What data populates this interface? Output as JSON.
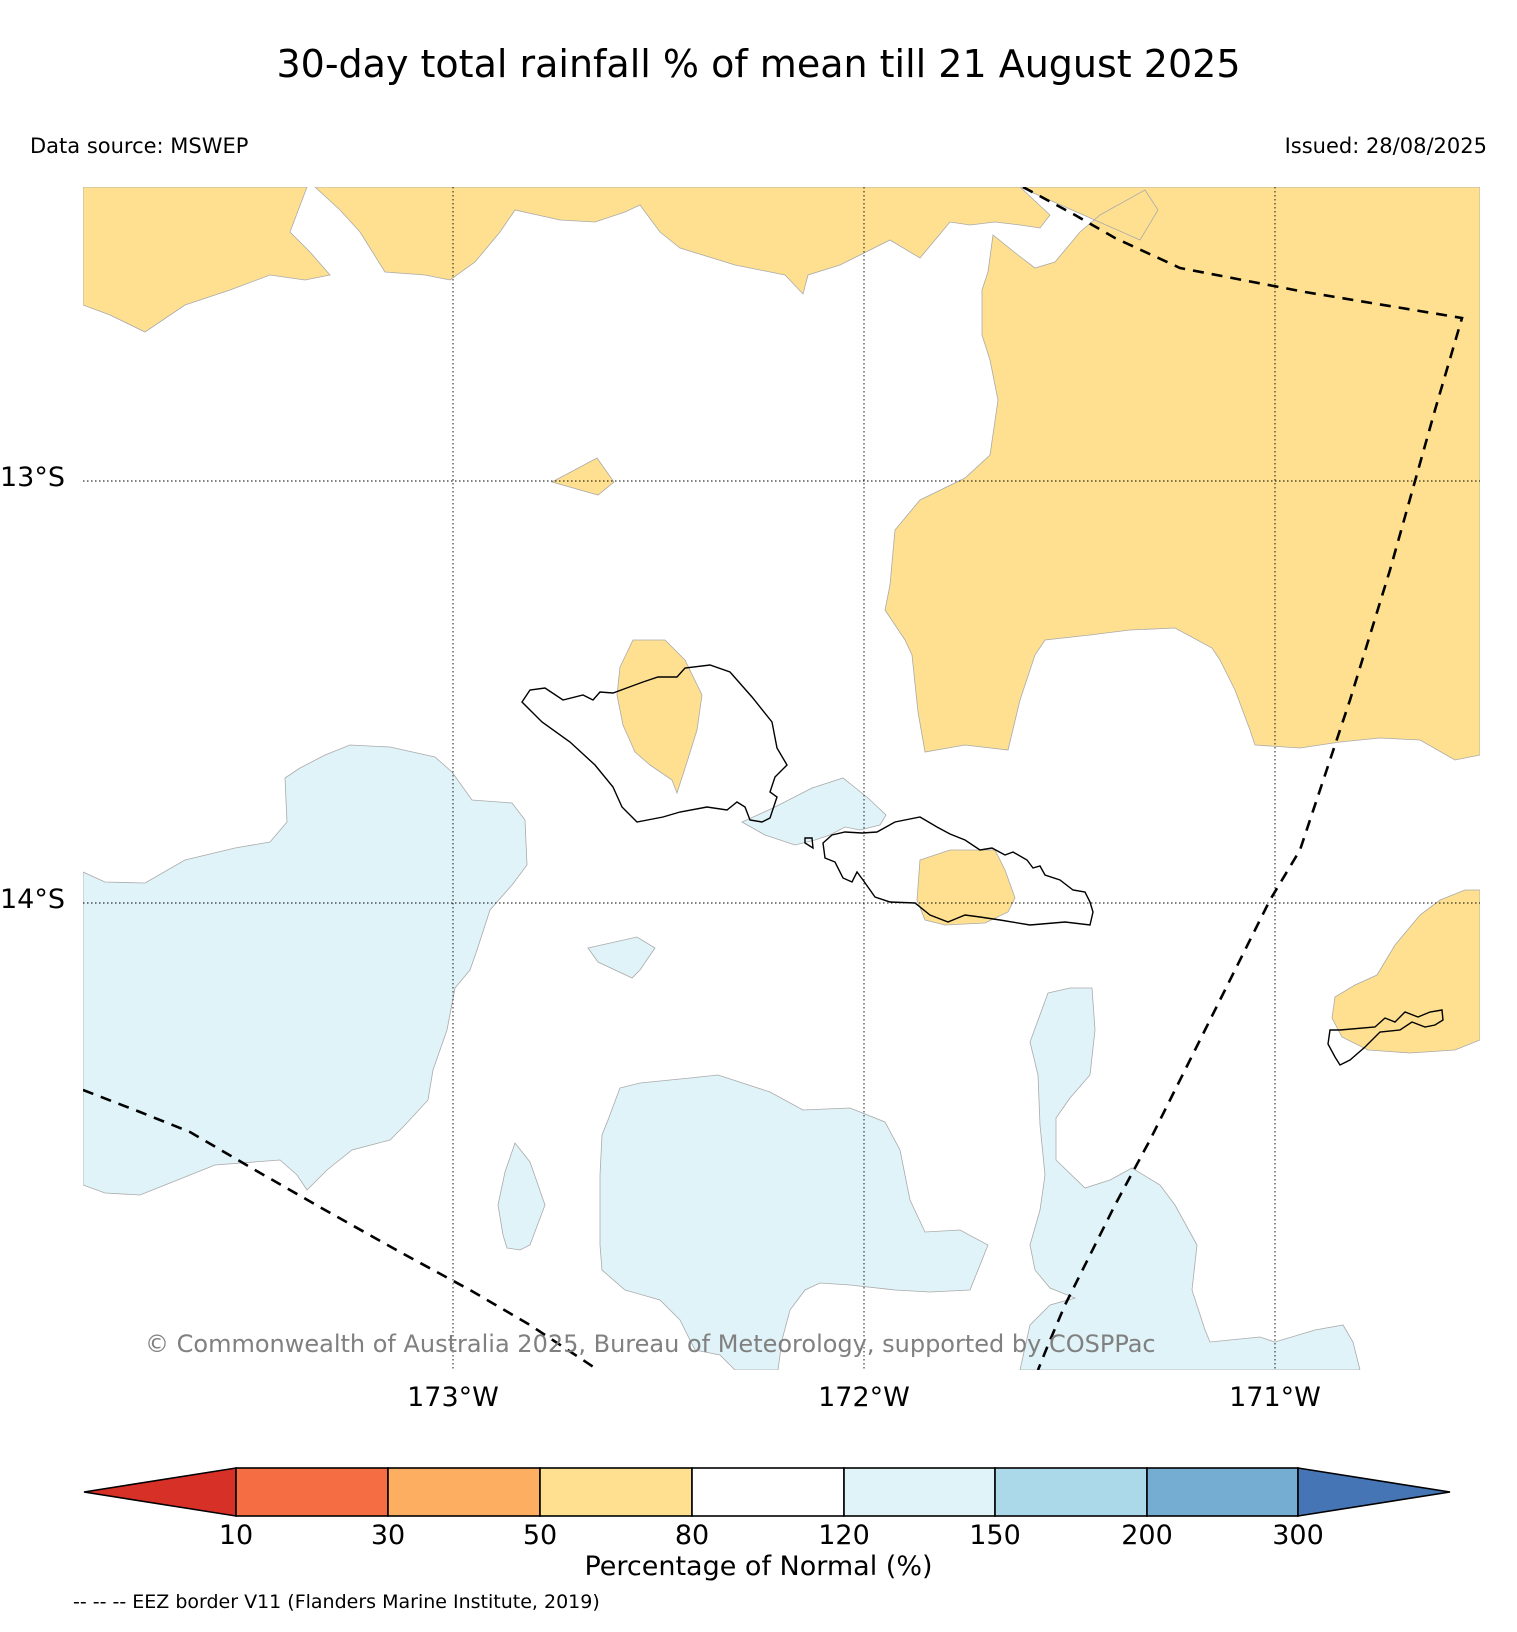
{
  "title": "30-day total rainfall % of mean till 21 August 2025",
  "data_source": "Data source: MSWEP",
  "issued": "Issued: 28/08/2025",
  "latitude_labels": [
    "13°S",
    "14°S"
  ],
  "longitude_labels": [
    "173°W",
    "172°W",
    "171°W"
  ],
  "copyright": "© Commonwealth of Australia 2025, Bureau of Meteorology, supported by COSPPac",
  "colorbar": {
    "title": "Percentage of Normal (%)",
    "ticks": [
      "10",
      "30",
      "50",
      "80",
      "120",
      "150",
      "200",
      "300"
    ],
    "bins": [
      {
        "range": "<10",
        "color": "#d73027"
      },
      {
        "range": "10-30",
        "color": "#f46d43"
      },
      {
        "range": "30-50",
        "color": "#fdae61"
      },
      {
        "range": "50-80",
        "color": "#fee090"
      },
      {
        "range": "80-120",
        "color": "#ffffff"
      },
      {
        "range": "120-150",
        "color": "#e0f3f8"
      },
      {
        "range": "150-200",
        "color": "#abd9e9"
      },
      {
        "range": "200-300",
        "color": "#74add1"
      },
      {
        "range": ">300",
        "color": "#4575b4"
      }
    ]
  },
  "legend_note": "-- -- -- EEZ border V11 (Flanders Marine Institute, 2019)",
  "map": {
    "region": "Samoa",
    "gridlines": "dotted",
    "eez_border": "dashed"
  }
}
